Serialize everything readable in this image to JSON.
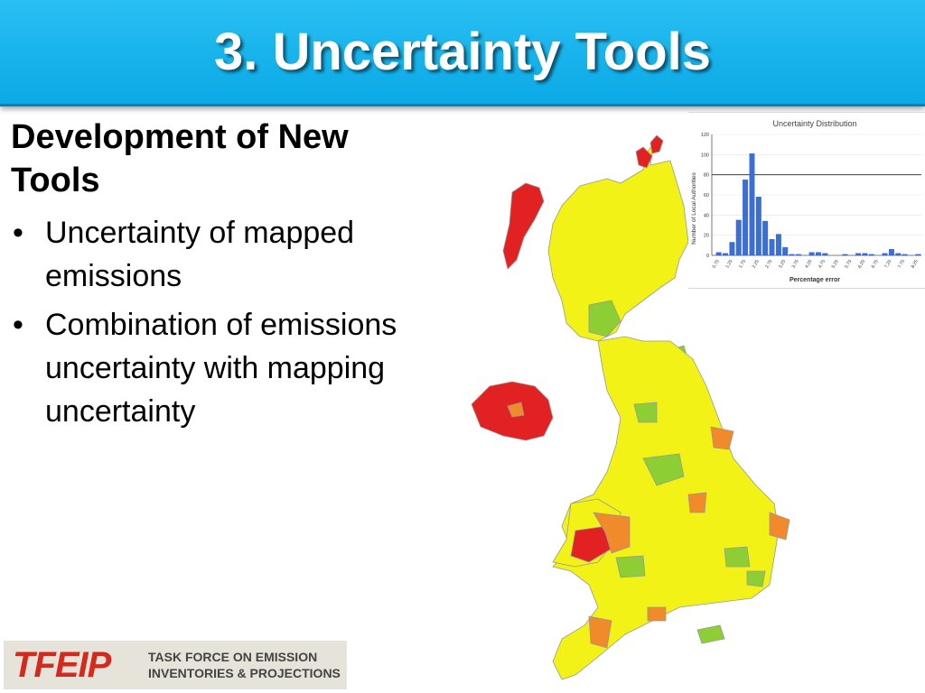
{
  "slide": {
    "title": "3. Uncertainty Tools",
    "heading_line1": "Development of New",
    "heading_line2": "Tools",
    "bullets": [
      "Uncertainty of mapped emissions",
      "Combination of emissions uncertainty with mapping uncertainty"
    ]
  },
  "logo": {
    "mark": "TFEIP",
    "line1": "TASK FORCE ON EMISSION",
    "line2": "INVENTORIES & PROJECTIONS"
  },
  "colors": {
    "title_bar": "#17b4ef",
    "map_low": "#f2f217",
    "map_lowmid": "#8cce33",
    "map_mid": "#f08a2a",
    "map_high": "#e22222",
    "bars": "#3b6fd6",
    "logo_red": "#d42a1e"
  },
  "chart_data": {
    "type": "bar",
    "title": "Uncertainty Distribution",
    "xlabel": "Percentage error",
    "ylabel": "Number of Local Authorities",
    "ylim": [
      0,
      120
    ],
    "yticks": [
      0,
      20,
      40,
      60,
      80,
      100,
      120
    ],
    "x_tick_labels": [
      "0.75",
      "1.25",
      "1.75",
      "2.25",
      "2.75",
      "3.25",
      "3.75",
      "4.25",
      "4.75",
      "5.25",
      "5.75",
      "6.25",
      "6.75",
      "7.25",
      "7.75",
      "8.25"
    ],
    "values": [
      3,
      2,
      13,
      35,
      75,
      101,
      58,
      34,
      16,
      21,
      8,
      1,
      1,
      0,
      3,
      3,
      2,
      0,
      0,
      1,
      0,
      2,
      2,
      1,
      0,
      2,
      6,
      2,
      1,
      0,
      1
    ],
    "reference_lines": [
      80
    ]
  }
}
